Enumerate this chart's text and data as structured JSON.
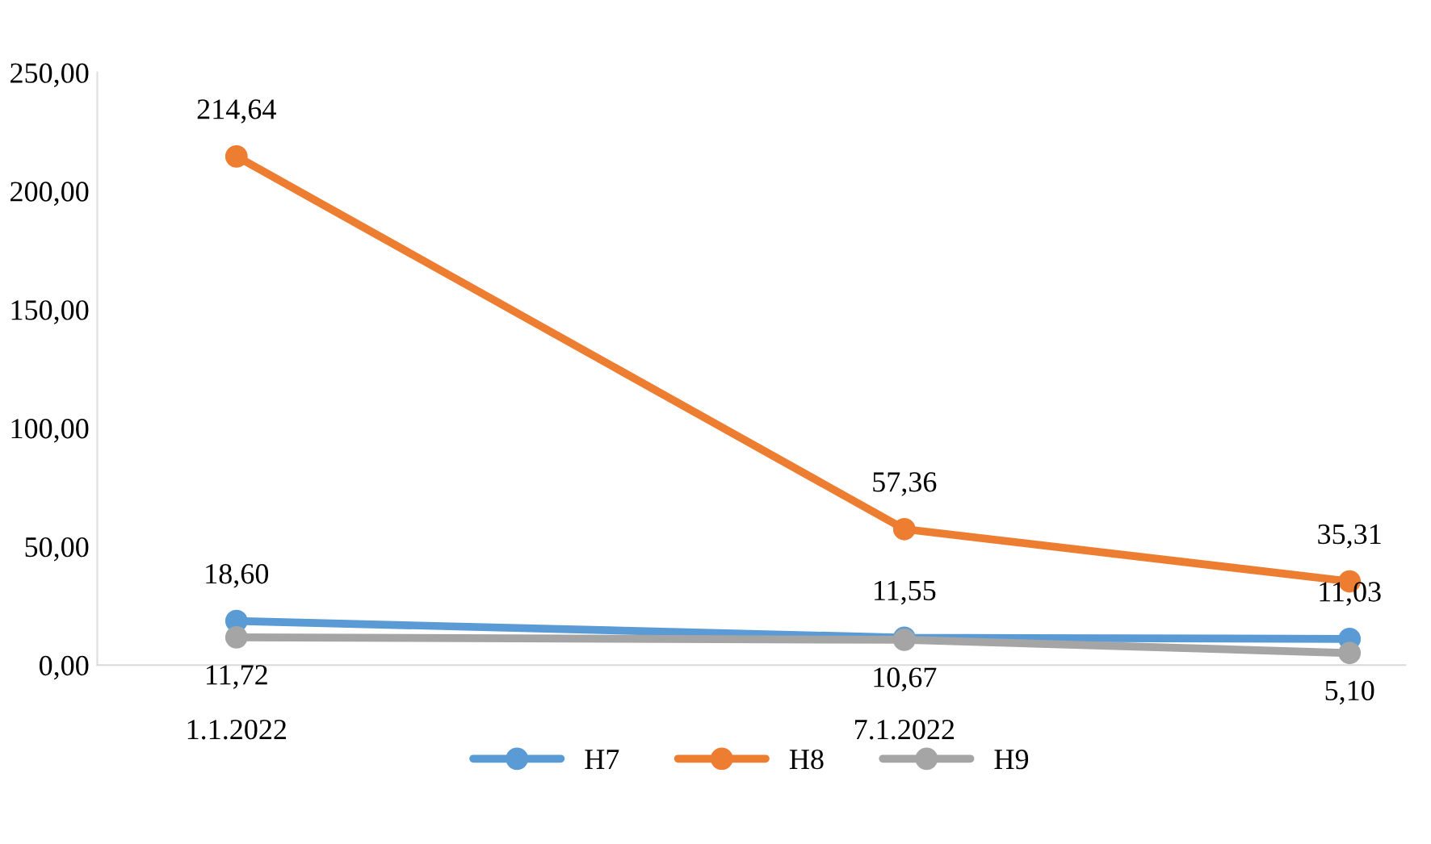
{
  "chart_data": {
    "type": "line",
    "x": [
      "2022-01-01",
      "2022-01-07",
      "2022-01-11"
    ],
    "xlim": [
      "2021-12-30T18:00",
      "2022-01-11T12:00"
    ],
    "xticks": [
      {
        "value": "2022-01-01",
        "label": "1.1.2022"
      },
      {
        "value": "2022-01-07",
        "label": "7.1.2022"
      }
    ],
    "ylim": [
      0,
      250
    ],
    "yticks": [
      {
        "value": 0,
        "label": "0,00"
      },
      {
        "value": 50,
        "label": "50,00"
      },
      {
        "value": 100,
        "label": "100,00"
      },
      {
        "value": 150,
        "label": "150,00"
      },
      {
        "value": 200,
        "label": "200,00"
      },
      {
        "value": 250,
        "label": "250,00"
      }
    ],
    "series": [
      {
        "name": "H7",
        "color": "#5b9bd5",
        "values": [
          18.6,
          11.55,
          11.03
        ],
        "value_labels": [
          "18,60",
          "11,55",
          "11,03"
        ]
      },
      {
        "name": "H8",
        "color": "#ed7d31",
        "values": [
          214.64,
          57.36,
          35.31
        ],
        "value_labels": [
          "214,64",
          "57,36",
          "35,31"
        ]
      },
      {
        "name": "H9",
        "color": "#a5a5a5",
        "values": [
          11.72,
          10.67,
          5.1
        ],
        "value_labels": [
          "11,72",
          "10,67",
          "5,10"
        ]
      }
    ],
    "marker": "circle",
    "line_style": "solid",
    "grid": false,
    "legend": "bottom"
  }
}
